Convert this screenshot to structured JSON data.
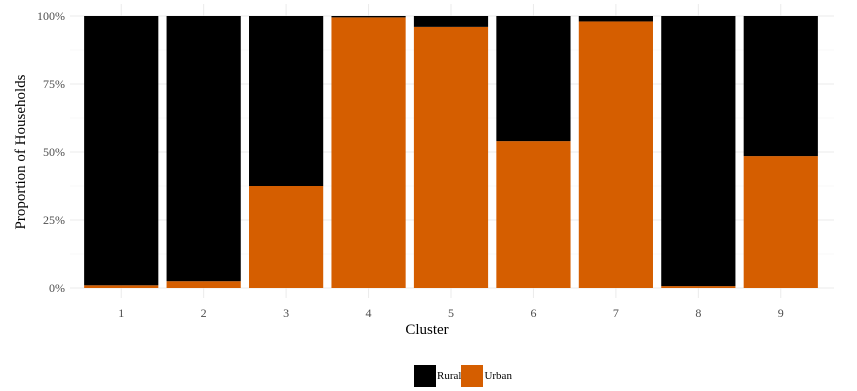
{
  "chart_data": {
    "type": "bar",
    "stacked": true,
    "xlabel": "Cluster",
    "ylabel": "Proportion of Households",
    "categories": [
      "1",
      "2",
      "3",
      "4",
      "5",
      "6",
      "7",
      "8",
      "9"
    ],
    "yticks": [
      "0%",
      "25%",
      "50%",
      "75%",
      "100%"
    ],
    "ylim": [
      0,
      1
    ],
    "grid": true,
    "legend_position": "bottom",
    "series": [
      {
        "name": "Urban",
        "color": "#D55E00",
        "values": [
          0.01,
          0.025,
          0.375,
          0.995,
          0.96,
          0.54,
          0.98,
          0.007,
          0.485
        ]
      },
      {
        "name": "Rural",
        "color": "#000000",
        "values": [
          0.99,
          0.975,
          0.625,
          0.005,
          0.04,
          0.46,
          0.02,
          0.993,
          0.515
        ]
      }
    ]
  },
  "legend": {
    "items": [
      {
        "label": "Rural",
        "color": "#000000"
      },
      {
        "label": "Urban",
        "color": "#D55E00"
      }
    ]
  }
}
